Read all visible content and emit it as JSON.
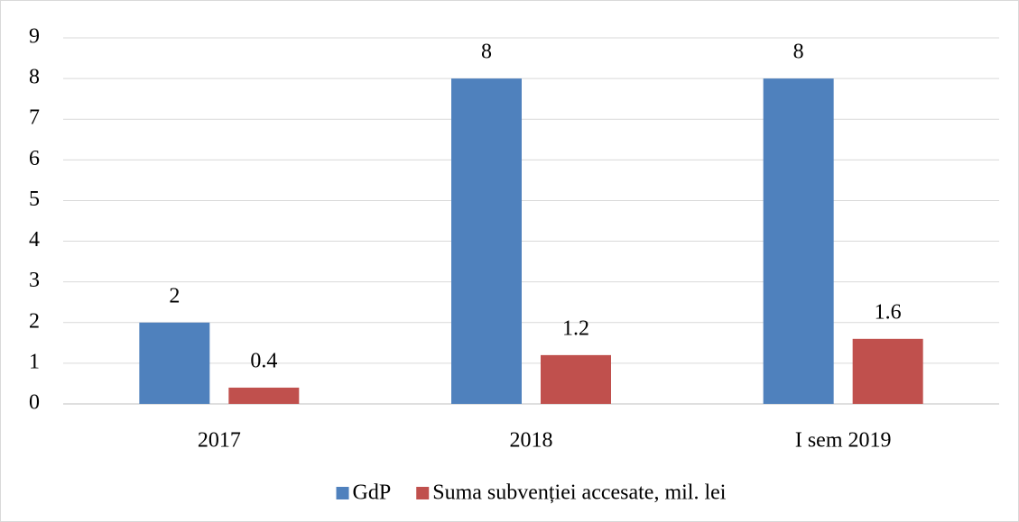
{
  "chart_data": {
    "type": "bar",
    "categories": [
      "2017",
      "2018",
      "I sem 2019"
    ],
    "series": [
      {
        "name": "GdP",
        "color": "#4f81bd",
        "values": [
          2,
          8,
          8
        ]
      },
      {
        "name": "Suma subvenției accesate, mil. lei",
        "color": "#c0504d",
        "values": [
          0.4,
          1.2,
          1.6
        ]
      }
    ],
    "ylim": [
      0,
      9
    ],
    "yticks": [
      0,
      1,
      2,
      3,
      4,
      5,
      6,
      7,
      8,
      9
    ],
    "grid": true,
    "legend": "bottom"
  }
}
